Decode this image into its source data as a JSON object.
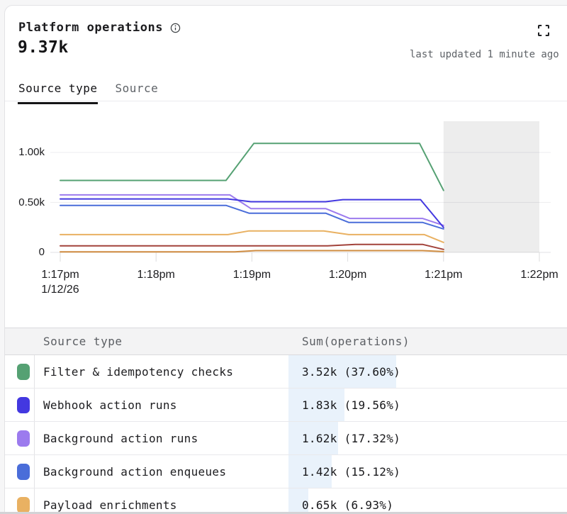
{
  "header": {
    "title": "Platform operations",
    "total": "9.37k",
    "last_updated": "last updated 1 minute ago"
  },
  "tabs": [
    {
      "label": "Source type",
      "active": true
    },
    {
      "label": "Source",
      "active": false
    }
  ],
  "chart_data": {
    "type": "line",
    "x_axis": {
      "tick_labels": [
        "1:17pm",
        "1:18pm",
        "1:19pm",
        "1:20pm",
        "1:21pm",
        "1:22pm"
      ],
      "date_label": "1/12/26",
      "date_under_tick": "1:17pm"
    },
    "y_axis": {
      "tick_labels": [
        "1.00k",
        "0.50k",
        "0"
      ],
      "tick_values": [
        1000,
        500,
        0
      ],
      "ylim": [
        0,
        1280
      ]
    },
    "incomplete_region": {
      "from_label": "1:21pm",
      "to_label": "1:22pm"
    },
    "series": [
      {
        "name": "",
        "color": "#cf8c41",
        "points": [
          [
            0,
            6
          ],
          [
            1.82,
            6
          ],
          [
            2.04,
            18
          ],
          [
            3.78,
            18
          ],
          [
            4,
            8
          ]
        ]
      },
      {
        "name": "",
        "color": "#a2423a",
        "points": [
          [
            0,
            65
          ],
          [
            2.79,
            65
          ],
          [
            3.08,
            80
          ],
          [
            3.78,
            80
          ],
          [
            4,
            30
          ]
        ]
      },
      {
        "name": "Payload enrichments",
        "color": "#e9b162",
        "points": [
          [
            0,
            178
          ],
          [
            1.75,
            178
          ],
          [
            1.97,
            215
          ],
          [
            2.75,
            215
          ],
          [
            3.01,
            178
          ],
          [
            3.8,
            178
          ],
          [
            4,
            100
          ]
        ]
      },
      {
        "name": "Background action enqueues",
        "color": "#4a6dd9",
        "points": [
          [
            0,
            470
          ],
          [
            1.73,
            470
          ],
          [
            1.97,
            392
          ],
          [
            2.77,
            392
          ],
          [
            3.01,
            300
          ],
          [
            3.78,
            300
          ],
          [
            4,
            235
          ]
        ]
      },
      {
        "name": "Background action runs",
        "color": "#9c7bee",
        "points": [
          [
            0,
            575
          ],
          [
            1.77,
            575
          ],
          [
            1.99,
            438
          ],
          [
            2.77,
            438
          ],
          [
            3.02,
            340
          ],
          [
            3.78,
            340
          ],
          [
            4,
            270
          ]
        ]
      },
      {
        "name": "Webhook action runs",
        "color": "#4338e0",
        "points": [
          [
            0,
            535
          ],
          [
            1.75,
            535
          ],
          [
            1.99,
            507
          ],
          [
            2.77,
            507
          ],
          [
            2.95,
            528
          ],
          [
            3.76,
            528
          ],
          [
            4,
            250
          ]
        ]
      },
      {
        "name": "Filter & idempotency checks",
        "color": "#55a173",
        "points": [
          [
            0,
            720
          ],
          [
            1.73,
            720
          ],
          [
            2.02,
            1090
          ],
          [
            3.75,
            1090
          ],
          [
            4,
            620
          ]
        ]
      }
    ]
  },
  "table": {
    "columns": [
      "Source type",
      "Sum(operations)"
    ],
    "rows": [
      {
        "color": "#55a173",
        "label": "Filter & idempotency checks",
        "value": "3.52k (37.60%)",
        "pct": 37.6
      },
      {
        "color": "#4338e0",
        "label": "Webhook action runs",
        "value": "1.83k (19.56%)",
        "pct": 19.56
      },
      {
        "color": "#9c7bee",
        "label": "Background action runs",
        "value": "1.62k (17.32%)",
        "pct": 17.32
      },
      {
        "color": "#4a6dd9",
        "label": "Background action enqueues",
        "value": "1.42k (15.12%)",
        "pct": 15.12
      },
      {
        "color": "#e9b162",
        "label": "Payload enrichments",
        "value": "0.65k (6.93%)",
        "pct": 6.93
      }
    ]
  }
}
